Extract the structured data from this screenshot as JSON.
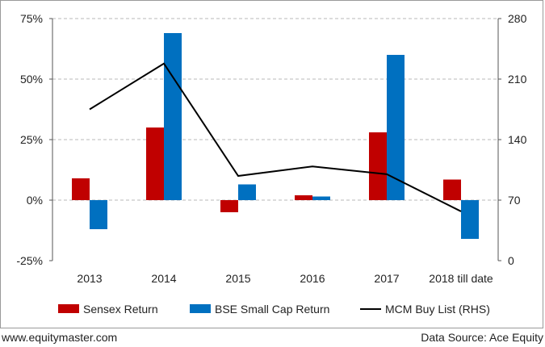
{
  "chart_data": {
    "type": "bar",
    "categories": [
      "2013",
      "2014",
      "2015",
      "2016",
      "2017",
      "2018 till date"
    ],
    "series": [
      {
        "name": "Sensex Return",
        "kind": "bar",
        "axis": "left",
        "color": "#c00000",
        "values": [
          9,
          30,
          -5,
          2,
          28,
          8.5
        ]
      },
      {
        "name": "BSE Small Cap Return",
        "kind": "bar",
        "axis": "left",
        "color": "#0070c0",
        "values": [
          -12,
          69,
          6.5,
          1.5,
          60,
          -16
        ]
      },
      {
        "name": "MCM Buy List (RHS)",
        "kind": "line",
        "axis": "right",
        "color": "#000000",
        "values": [
          175,
          228,
          98,
          109,
          100,
          57
        ]
      }
    ],
    "y_left": {
      "min": -25,
      "max": 75,
      "ticks": [
        -25,
        0,
        25,
        50,
        75
      ],
      "tick_labels": [
        "-25%",
        "0%",
        "25%",
        "50%",
        "75%"
      ]
    },
    "y_right": {
      "min": 0,
      "max": 280,
      "ticks": [
        0,
        70,
        140,
        210,
        280
      ],
      "tick_labels": [
        "0",
        "70",
        "140",
        "210",
        "280"
      ]
    },
    "grid": true,
    "legend_position": "bottom"
  },
  "footer": {
    "website": "www.equitymaster.com",
    "source": "Data Source: Ace Equity"
  }
}
